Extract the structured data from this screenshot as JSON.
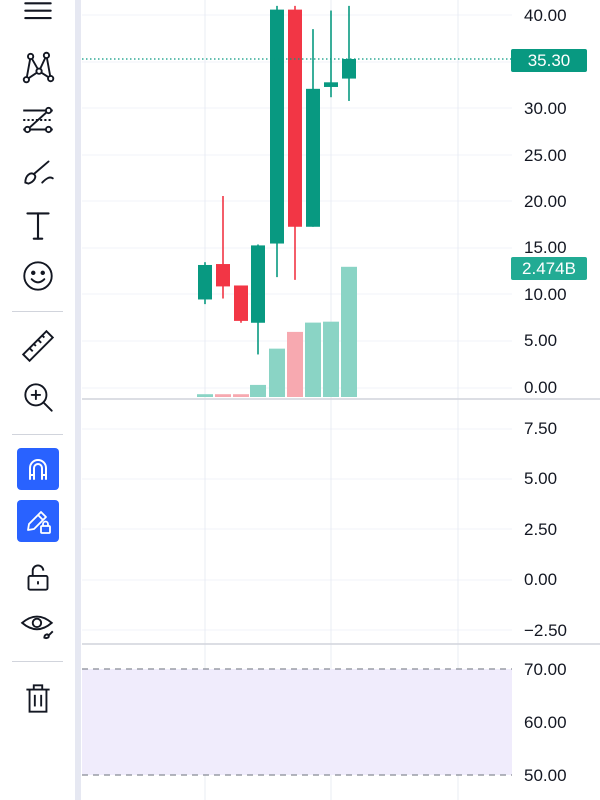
{
  "toolbar": {
    "tools": [
      {
        "id": "lines",
        "icon": "horizontal-lines-icon",
        "active": false
      },
      {
        "id": "patterns",
        "icon": "xabcd-pattern-icon",
        "active": false
      },
      {
        "id": "prediction",
        "icon": "forecast-lines-icon",
        "active": false
      },
      {
        "id": "brush",
        "icon": "brush-icon",
        "active": false
      },
      {
        "id": "text",
        "icon": "text-icon",
        "active": false
      },
      {
        "id": "emoji",
        "icon": "smiley-icon",
        "active": false
      },
      {
        "id": "measure",
        "icon": "ruler-icon",
        "active": false
      },
      {
        "id": "zoom",
        "icon": "zoom-in-icon",
        "active": false
      },
      {
        "id": "magnet",
        "icon": "magnet-icon",
        "active": true
      },
      {
        "id": "stay-drawing",
        "icon": "pencil-lock-icon",
        "active": true
      },
      {
        "id": "lock-all",
        "icon": "unlock-icon",
        "active": false
      },
      {
        "id": "hide",
        "icon": "eye-icon",
        "active": false
      },
      {
        "id": "remove",
        "icon": "trash-icon",
        "active": false
      }
    ]
  },
  "price_axis": {
    "labels": [
      "40.00",
      "35.30",
      "30.00",
      "25.00",
      "20.00",
      "15.00",
      "2.474B",
      "10.00",
      "5.00",
      "0.00"
    ],
    "last_price": "35.30",
    "volume_badge": "2.474B"
  },
  "oscillator_axis": {
    "labels": [
      "7.50",
      "5.00",
      "2.50",
      "0.00",
      "−2.50"
    ]
  },
  "rsi_axis": {
    "labels": [
      "70.00",
      "60.00",
      "50.00"
    ]
  },
  "colors": {
    "up": "#089981",
    "down": "#f23645",
    "up_volume": "#8ad4c5",
    "down_volume": "#f7a9b0",
    "grid": "#f0f3fa",
    "rsi_band": "#f0ecfc",
    "rsi_line": "#878b95"
  },
  "chart_data": {
    "type": "candlestick",
    "candles": [
      {
        "open": 9.5,
        "high": 13.5,
        "low": 9.0,
        "close": 13.2
      },
      {
        "open": 13.3,
        "high": 20.6,
        "low": 9.6,
        "close": 10.9
      },
      {
        "open": 11.0,
        "high": 11.0,
        "low": 7.0,
        "close": 7.2
      },
      {
        "open": 7.0,
        "high": 15.4,
        "low": 3.6,
        "close": 15.3
      },
      {
        "open": 15.5,
        "high": 41.0,
        "low": 11.9,
        "close": 40.6
      },
      {
        "open": 40.6,
        "high": 41.0,
        "low": 11.6,
        "close": 17.3
      },
      {
        "open": 17.3,
        "high": 38.5,
        "low": 17.3,
        "close": 32.1
      },
      {
        "open": 32.3,
        "high": 40.5,
        "low": 31.2,
        "close": 32.8
      },
      {
        "open": 33.2,
        "high": 41.0,
        "low": 30.8,
        "close": 35.3
      }
    ],
    "volume_scale": "relative",
    "volumes": [
      0.3,
      0.3,
      0.3,
      1.3,
      5.2,
      7.0,
      8.0,
      8.1,
      14.0
    ],
    "ylim": [
      0,
      40
    ],
    "last_price": 35.3
  }
}
